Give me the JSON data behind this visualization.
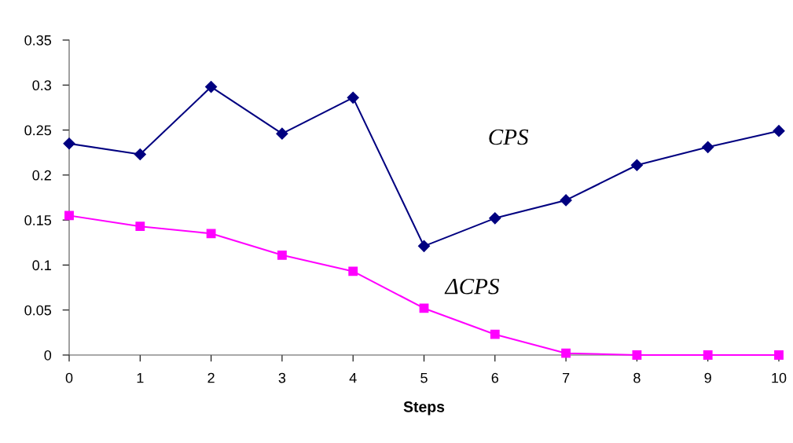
{
  "chart_data": {
    "type": "line",
    "xlabel": "Steps",
    "x": [
      0,
      1,
      2,
      3,
      4,
      5,
      6,
      7,
      8,
      9,
      10
    ],
    "series": [
      {
        "name": "CPS",
        "color": "#000080",
        "marker": "diamond",
        "values": [
          0.235,
          0.223,
          0.298,
          0.246,
          0.286,
          0.121,
          0.152,
          0.172,
          0.211,
          0.231,
          0.249
        ]
      },
      {
        "name": "ΔCPS",
        "color": "#ff00ff",
        "marker": "square",
        "values": [
          0.155,
          0.143,
          0.135,
          0.111,
          0.093,
          0.052,
          0.023,
          0.002,
          0,
          0,
          0
        ]
      }
    ],
    "xlim": [
      0,
      10
    ],
    "xticks": [
      0,
      1,
      2,
      3,
      4,
      5,
      6,
      7,
      8,
      9,
      10
    ],
    "ylim": [
      0,
      0.35
    ],
    "yticks": [
      0,
      0.05,
      0.1,
      0.15,
      0.2,
      0.25,
      0.3,
      0.35
    ],
    "grid": false,
    "legend": false
  }
}
